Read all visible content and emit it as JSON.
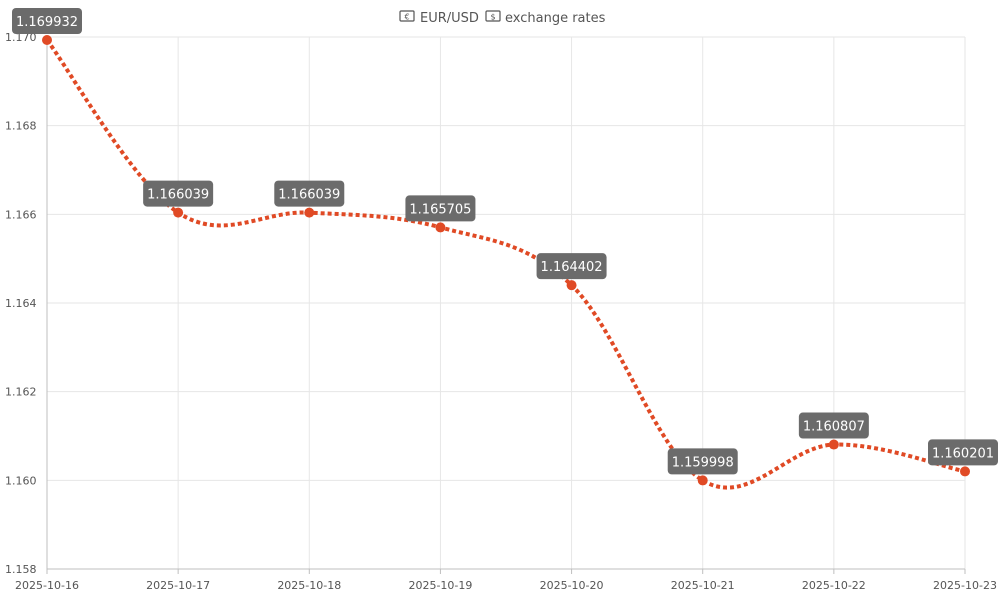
{
  "chart_data": {
    "type": "line",
    "title_prefix_icon": "banknote-euro-icon",
    "title_currency": "EUR/USD",
    "title_mid_icon": "banknote-dollar-icon",
    "title_suffix": "exchange rates",
    "x": [
      "2025-10-16",
      "2025-10-17",
      "2025-10-18",
      "2025-10-19",
      "2025-10-20",
      "2025-10-21",
      "2025-10-22",
      "2025-10-23"
    ],
    "series": [
      {
        "values": [
          1.169932,
          1.166039,
          1.166039,
          1.165705,
          1.164402,
          1.159998,
          1.160807,
          1.160201
        ],
        "labels": [
          "1.169932",
          "1.166039",
          "1.166039",
          "1.165705",
          "1.164402",
          "1.159998",
          "1.160807",
          "1.160201"
        ],
        "color": "#e04a25",
        "line_style": "dotted",
        "smooth": true
      }
    ],
    "ylim": [
      1.158,
      1.17
    ],
    "yticks": [
      "1.158",
      "1.160",
      "1.162",
      "1.164",
      "1.166",
      "1.168",
      "1.170"
    ],
    "ytick_values": [
      1.158,
      1.16,
      1.162,
      1.164,
      1.166,
      1.168,
      1.17
    ],
    "xlabel": "",
    "ylabel": "",
    "grid": true,
    "legend": "none",
    "data_labels": true,
    "label_box_color": "#6b6b6b"
  }
}
